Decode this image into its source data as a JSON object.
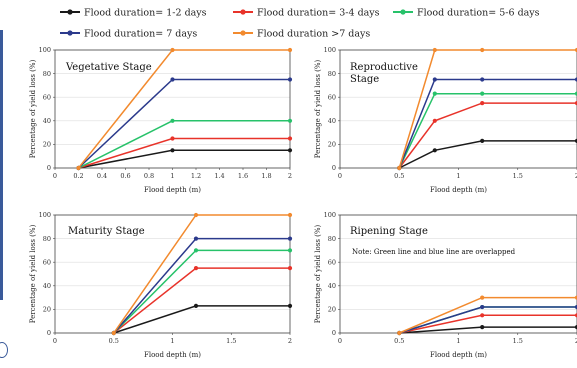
{
  "legend": [
    {
      "name": "Flood duration= 1-2 days",
      "color": "#1a1a1a"
    },
    {
      "name": "Flood duration= 3-4 days",
      "color": "#e8332a"
    },
    {
      "name": "Flood duration= 5-6 days",
      "color": "#27c26a"
    },
    {
      "name": "Flood duration= 7 days",
      "color": "#2b3a8c"
    },
    {
      "name": "Flood duration >7 days",
      "color": "#f28a2e"
    }
  ],
  "chart_data": [
    {
      "type": "line",
      "title": "Vegetative Stage",
      "xlabel": "Flood depth (m)",
      "ylabel": "Percentage of yield loss (%)",
      "xlim": [
        0,
        2
      ],
      "ylim": [
        0,
        100
      ],
      "xticks": [
        "0",
        "0.2",
        "0.4",
        "0.6",
        "0.8",
        "1",
        "1.2",
        "1.4",
        "1.6",
        "1.8",
        "2"
      ],
      "xtick_values": [
        0,
        0.2,
        0.4,
        0.6,
        0.8,
        1,
        1.2,
        1.4,
        1.6,
        1.8,
        2
      ],
      "yticks": [
        "0",
        "20",
        "40",
        "60",
        "80",
        "100"
      ],
      "ytick_values": [
        0,
        20,
        40,
        60,
        80,
        100
      ],
      "note": "",
      "series": [
        {
          "name": "Flood duration= 1-2 days",
          "x": [
            0.2,
            1,
            2
          ],
          "y": [
            0,
            15,
            15
          ]
        },
        {
          "name": "Flood duration= 3-4 days",
          "x": [
            0.2,
            1,
            2
          ],
          "y": [
            0,
            25,
            25
          ]
        },
        {
          "name": "Flood duration= 5-6 days",
          "x": [
            0.2,
            1,
            2
          ],
          "y": [
            0,
            40,
            40
          ]
        },
        {
          "name": "Flood duration= 7 days",
          "x": [
            0.2,
            1,
            2
          ],
          "y": [
            0,
            75,
            75
          ]
        },
        {
          "name": "Flood duration >7 days",
          "x": [
            0.2,
            1,
            2
          ],
          "y": [
            0,
            100,
            100
          ]
        }
      ]
    },
    {
      "type": "line",
      "title": "Reproductive Stage",
      "xlabel": "Flood depth (m)",
      "ylabel": "Percentage of yield loss (%)",
      "xlim": [
        0,
        2
      ],
      "ylim": [
        0,
        100
      ],
      "xticks": [
        "0",
        "0.5",
        "1",
        "1.5",
        "2"
      ],
      "xtick_values": [
        0,
        0.5,
        1,
        1.5,
        2
      ],
      "yticks": [
        "0",
        "20",
        "40",
        "60",
        "80",
        "100"
      ],
      "ytick_values": [
        0,
        20,
        40,
        60,
        80,
        100
      ],
      "note": "",
      "series": [
        {
          "name": "Flood duration= 1-2 days",
          "x": [
            0.5,
            0.8,
            1.2,
            2
          ],
          "y": [
            0,
            15,
            23,
            23
          ]
        },
        {
          "name": "Flood duration= 3-4 days",
          "x": [
            0.5,
            0.8,
            1.2,
            2
          ],
          "y": [
            0,
            40,
            55,
            55
          ]
        },
        {
          "name": "Flood duration= 5-6 days",
          "x": [
            0.5,
            0.8,
            1.2,
            2
          ],
          "y": [
            0,
            63,
            63,
            63
          ]
        },
        {
          "name": "Flood duration= 7 days",
          "x": [
            0.5,
            0.8,
            1.2,
            2
          ],
          "y": [
            0,
            75,
            75,
            75
          ]
        },
        {
          "name": "Flood duration >7 days",
          "x": [
            0.5,
            0.8,
            1.2,
            2
          ],
          "y": [
            0,
            100,
            100,
            100
          ]
        }
      ]
    },
    {
      "type": "line",
      "title": "Maturity Stage",
      "xlabel": "Flood depth (m)",
      "ylabel": "Percentage of yield loss (%)",
      "xlim": [
        0,
        2
      ],
      "ylim": [
        0,
        100
      ],
      "xticks": [
        "0",
        "0.5",
        "1",
        "1.5",
        "2"
      ],
      "xtick_values": [
        0,
        0.5,
        1,
        1.5,
        2
      ],
      "yticks": [
        "0",
        "20",
        "40",
        "60",
        "80",
        "100"
      ],
      "ytick_values": [
        0,
        20,
        40,
        60,
        80,
        100
      ],
      "note": "",
      "series": [
        {
          "name": "Flood duration= 1-2 days",
          "x": [
            0.5,
            1.2,
            2
          ],
          "y": [
            0,
            23,
            23
          ]
        },
        {
          "name": "Flood duration= 3-4 days",
          "x": [
            0.5,
            1.2,
            2
          ],
          "y": [
            0,
            55,
            55
          ]
        },
        {
          "name": "Flood duration= 5-6 days",
          "x": [
            0.5,
            1.2,
            2
          ],
          "y": [
            0,
            70,
            70
          ]
        },
        {
          "name": "Flood duration= 7 days",
          "x": [
            0.5,
            1.2,
            2
          ],
          "y": [
            0,
            80,
            80
          ]
        },
        {
          "name": "Flood duration >7 days",
          "x": [
            0.5,
            1.2,
            2
          ],
          "y": [
            0,
            100,
            100
          ]
        }
      ]
    },
    {
      "type": "line",
      "title": "Ripening Stage",
      "xlabel": "Flood depth (m)",
      "ylabel": "Percentage of yield loss (%)",
      "xlim": [
        0,
        2
      ],
      "ylim": [
        0,
        100
      ],
      "xticks": [
        "0",
        "0.5",
        "1",
        "1.5",
        "2"
      ],
      "xtick_values": [
        0,
        0.5,
        1,
        1.5,
        2
      ],
      "yticks": [
        "0",
        "20",
        "40",
        "60",
        "80",
        "100"
      ],
      "ytick_values": [
        0,
        20,
        40,
        60,
        80,
        100
      ],
      "note": "Note: Green line and blue line are overlapped",
      "series": [
        {
          "name": "Flood duration= 1-2 days",
          "x": [
            0.5,
            1.2,
            2
          ],
          "y": [
            0,
            5,
            5
          ]
        },
        {
          "name": "Flood duration= 3-4 days",
          "x": [
            0.5,
            1.2,
            2
          ],
          "y": [
            0,
            15,
            15
          ]
        },
        {
          "name": "Flood duration= 5-6 days",
          "x": [
            0.5,
            1.2,
            2
          ],
          "y": [
            0,
            22,
            22
          ]
        },
        {
          "name": "Flood duration= 7 days",
          "x": [
            0.5,
            1.2,
            2
          ],
          "y": [
            0,
            22,
            22
          ]
        },
        {
          "name": "Flood duration >7 days",
          "x": [
            0.5,
            1.2,
            2
          ],
          "y": [
            0,
            30,
            30
          ]
        }
      ]
    }
  ]
}
